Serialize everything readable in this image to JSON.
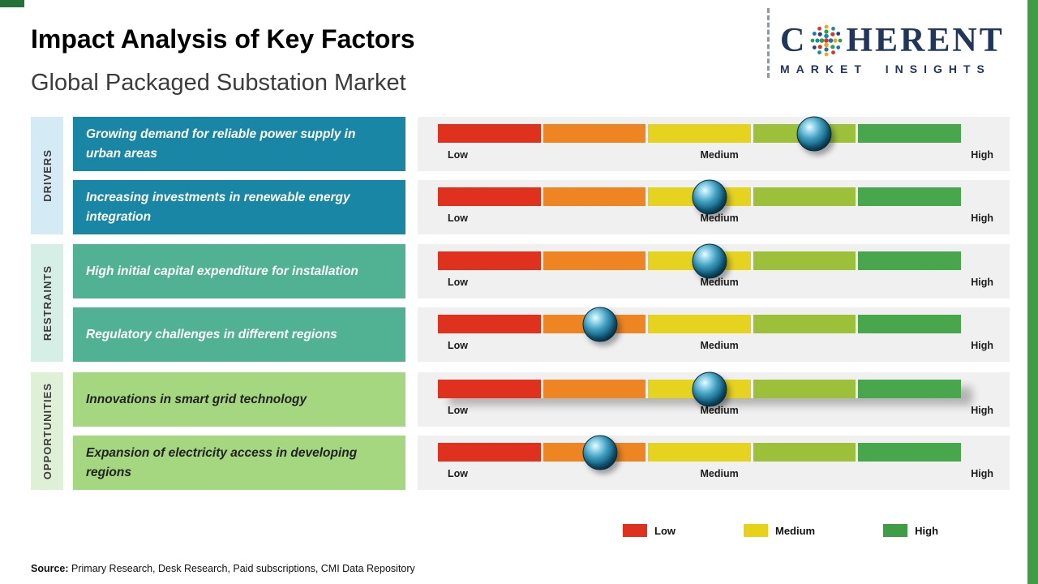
{
  "header": {
    "title": "Impact Analysis of Key Factors",
    "subtitle": "Global Packaged Substation Market"
  },
  "logo": {
    "brand_prefix": "C",
    "brand_suffix": "HERENT",
    "tagline": "MARKET INSIGHTS"
  },
  "groups": [
    {
      "label": "DRIVERS"
    },
    {
      "label": "RESTRAINTS"
    },
    {
      "label": "OPPORTUNITIES"
    }
  ],
  "rows": [
    {
      "factor": "Growing demand for reliable power supply in urban areas"
    },
    {
      "factor": "Increasing investments in renewable energy integration"
    },
    {
      "factor": "High initial capital expenditure for installation"
    },
    {
      "factor": "Regulatory challenges in different regions"
    },
    {
      "factor": "Innovations in smart grid technology"
    },
    {
      "factor": "Expansion of electricity access in developing regions"
    }
  ],
  "scale": {
    "low": "Low",
    "medium": "Medium",
    "high": "High"
  },
  "legend": [
    {
      "label": "Low",
      "color": "#e0301e"
    },
    {
      "label": "Medium",
      "color": "#e8d218"
    },
    {
      "label": "High",
      "color": "#3f9e45"
    }
  ],
  "source": {
    "label": "Source:",
    "text": " Primary Research, Desk Research, Paid subscriptions, CMI Data Repository"
  },
  "colors": {
    "drivers_box": "#1a86a6",
    "restraints_box": "#50b292",
    "opportunities_box": "#a4d77f",
    "panel_background": "#f0f0f0",
    "accent_green": "#3f9e45",
    "knob": "#12566e",
    "brand_navy": "#20365f"
  },
  "chart_data": {
    "type": "bar",
    "title": "Impact Analysis of Key Factors",
    "subtitle": "Global Packaged Substation Market",
    "scale_labels": [
      "Low",
      "Medium",
      "High"
    ],
    "gradient_colors": [
      "#e0301e",
      "#ef8522",
      "#e5d320",
      "#9dc03a",
      "#48a64c"
    ],
    "series": [
      {
        "group": "Drivers",
        "factor": "Growing demand for reliable power supply in urban areas",
        "impact_position_pct": 72,
        "impact_level": "Medium-High"
      },
      {
        "group": "Drivers",
        "factor": "Increasing investments in renewable energy integration",
        "impact_position_pct": 52,
        "impact_level": "Medium"
      },
      {
        "group": "Restraints",
        "factor": "High initial capital expenditure for installation",
        "impact_position_pct": 52,
        "impact_level": "Medium"
      },
      {
        "group": "Restraints",
        "factor": "Regulatory challenges in different regions",
        "impact_position_pct": 31,
        "impact_level": "Low-Medium"
      },
      {
        "group": "Opportunities",
        "factor": "Innovations in smart grid technology",
        "impact_position_pct": 52,
        "impact_level": "Medium"
      },
      {
        "group": "Opportunities",
        "factor": "Expansion of electricity access in developing regions",
        "impact_position_pct": 31,
        "impact_level": "Low-Medium"
      }
    ]
  }
}
